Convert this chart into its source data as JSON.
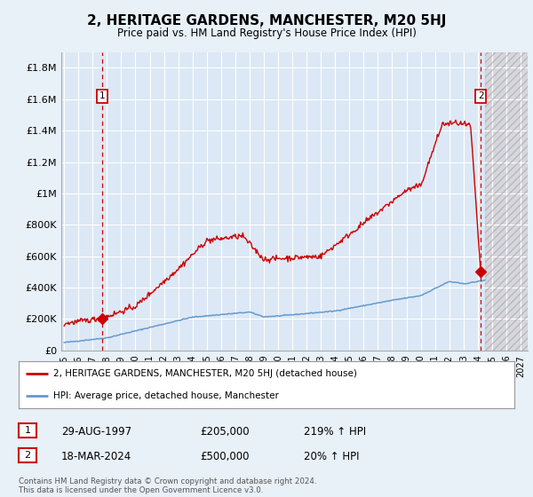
{
  "title": "2, HERITAGE GARDENS, MANCHESTER, M20 5HJ",
  "subtitle": "Price paid vs. HM Land Registry's House Price Index (HPI)",
  "bg_color": "#e8f0f8",
  "plot_bg": "#dce8f5",
  "grid_color": "#ffffff",
  "red_line_color": "#cc0000",
  "blue_line_color": "#6699cc",
  "ylim": [
    0,
    1900000
  ],
  "xlim_start": 1994.8,
  "xlim_end": 2027.5,
  "yticks": [
    0,
    200000,
    400000,
    600000,
    800000,
    1000000,
    1200000,
    1400000,
    1600000,
    1800000
  ],
  "ytick_labels": [
    "£0",
    "£200K",
    "£400K",
    "£600K",
    "£800K",
    "£1M",
    "£1.2M",
    "£1.4M",
    "£1.6M",
    "£1.8M"
  ],
  "xticks": [
    1995,
    1996,
    1997,
    1998,
    1999,
    2000,
    2001,
    2002,
    2003,
    2004,
    2005,
    2006,
    2007,
    2008,
    2009,
    2010,
    2011,
    2012,
    2013,
    2014,
    2015,
    2016,
    2017,
    2018,
    2019,
    2020,
    2021,
    2022,
    2023,
    2024,
    2025,
    2026,
    2027
  ],
  "sale1_year": 1997.66,
  "sale1_price": 205000,
  "sale2_year": 2024.21,
  "sale2_price": 500000,
  "hatch_start": 2024.5,
  "legend_line1": "2, HERITAGE GARDENS, MANCHESTER, M20 5HJ (detached house)",
  "legend_line2": "HPI: Average price, detached house, Manchester",
  "table_row1_num": "1",
  "table_row1_date": "29-AUG-1997",
  "table_row1_price": "£205,000",
  "table_row1_hpi": "219% ↑ HPI",
  "table_row2_num": "2",
  "table_row2_date": "18-MAR-2024",
  "table_row2_price": "£500,000",
  "table_row2_hpi": "20% ↑ HPI",
  "footer": "Contains HM Land Registry data © Crown copyright and database right 2024.\nThis data is licensed under the Open Government Licence v3.0."
}
